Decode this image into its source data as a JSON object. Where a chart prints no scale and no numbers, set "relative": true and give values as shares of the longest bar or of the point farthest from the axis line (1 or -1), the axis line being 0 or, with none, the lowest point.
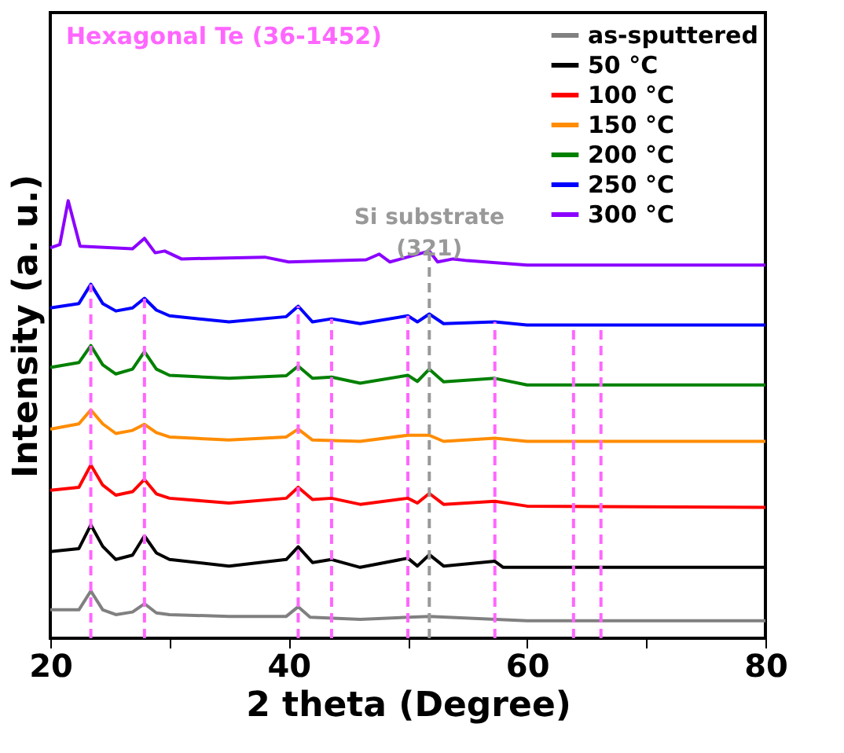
{
  "chart_data": {
    "type": "line",
    "relative": true,
    "xlabel": "2 theta (Degree)",
    "ylabel": "Intensity (a. u.)",
    "xlim": [
      20,
      80
    ],
    "xticks": [
      20,
      {
        "value": 30,
        "label": null
      },
      40,
      {
        "value": 50,
        "label": null
      },
      60,
      {
        "value": 70,
        "label": null
      },
      80
    ],
    "grid": false,
    "legend": "top right",
    "marker": "none",
    "line_style": "solid",
    "annotations": [
      "Hexagonal Te (36-1452)"
    ],
    "ref_lines": [
      {
        "axis": "x",
        "value": 23.4,
        "color": "#ff66ff",
        "line_style": "dashed"
      },
      {
        "axis": "x",
        "value": 27.9,
        "color": "#ff66ff",
        "line_style": "dashed"
      },
      {
        "axis": "x",
        "value": 40.8,
        "color": "#ff66ff",
        "line_style": "dashed"
      },
      {
        "axis": "x",
        "value": 43.6,
        "color": "#ff66ff",
        "line_style": "dashed"
      },
      {
        "axis": "x",
        "value": 50.0,
        "color": "#ff66ff",
        "line_style": "dashed"
      },
      {
        "axis": "x",
        "value": 57.3,
        "color": "#ff66ff",
        "line_style": "dashed"
      },
      {
        "axis": "x",
        "value": 63.9,
        "color": "#ff66ff",
        "line_style": "dashed"
      },
      {
        "axis": "x",
        "value": 66.2,
        "color": "#ff66ff",
        "line_style": "dashed"
      },
      {
        "axis": "x",
        "value": 51.8,
        "color": "#999999",
        "line_style": "dashed",
        "label": "Si substrate\n(321)"
      }
    ],
    "series": [
      {
        "name": "as-sputtered",
        "color": "#808080",
        "x": [
          20,
          22.4,
          23.4,
          24.4,
          25.5,
          26.9,
          27.9,
          28.9,
          30,
          35,
          39.8,
          40.8,
          41.8,
          46,
          51.8,
          60,
          80
        ],
        "values": [
          0.065,
          0.065,
          0.108,
          0.065,
          0.054,
          0.06,
          0.079,
          0.058,
          0.054,
          0.05,
          0.05,
          0.072,
          0.048,
          0.043,
          0.05,
          0.04,
          0.04
        ]
      },
      {
        "name": "50 °C",
        "color": "#000000",
        "x": [
          20,
          22.4,
          23.4,
          24.4,
          25.5,
          26.9,
          27.9,
          28.9,
          30,
          35,
          39.8,
          40.8,
          42,
          43.6,
          46,
          50,
          50.8,
          51.8,
          53,
          57.3,
          58,
          80
        ],
        "values": [
          0.198,
          0.205,
          0.259,
          0.21,
          0.18,
          0.19,
          0.234,
          0.195,
          0.18,
          0.165,
          0.18,
          0.209,
          0.173,
          0.18,
          0.162,
          0.183,
          0.165,
          0.191,
          0.165,
          0.176,
          0.162,
          0.162
        ]
      },
      {
        "name": "100 °C",
        "color": "#ff0000",
        "x": [
          20,
          22.4,
          23.4,
          24.4,
          25.5,
          26.9,
          27.9,
          28.9,
          30,
          35,
          39.8,
          40.8,
          42,
          43.6,
          46,
          50,
          50.8,
          51.8,
          53,
          57.3,
          60,
          80
        ],
        "values": [
          0.338,
          0.345,
          0.396,
          0.35,
          0.327,
          0.335,
          0.363,
          0.33,
          0.32,
          0.309,
          0.32,
          0.345,
          0.317,
          0.32,
          0.306,
          0.32,
          0.309,
          0.331,
          0.306,
          0.313,
          0.302,
          0.299
        ]
      },
      {
        "name": "150 °C",
        "color": "#ff8c00",
        "x": [
          20,
          22.4,
          23.4,
          24.4,
          25.5,
          26.9,
          27.9,
          28.9,
          30,
          35,
          39.8,
          40.8,
          42,
          46,
          50,
          51.8,
          53,
          57.3,
          60,
          80
        ],
        "values": [
          0.478,
          0.49,
          0.522,
          0.49,
          0.468,
          0.475,
          0.489,
          0.47,
          0.46,
          0.453,
          0.46,
          0.478,
          0.453,
          0.45,
          0.464,
          0.464,
          0.45,
          0.457,
          0.45,
          0.45
        ]
      },
      {
        "name": "200 °C",
        "color": "#008000",
        "x": [
          20,
          22.4,
          23.4,
          24.4,
          25.5,
          26.9,
          27.9,
          28.9,
          30,
          35,
          39.8,
          40.8,
          42,
          43.6,
          46,
          50,
          50.8,
          51.8,
          53,
          57.3,
          60,
          80
        ],
        "values": [
          0.619,
          0.63,
          0.669,
          0.625,
          0.604,
          0.615,
          0.655,
          0.615,
          0.601,
          0.594,
          0.6,
          0.622,
          0.594,
          0.597,
          0.583,
          0.601,
          0.587,
          0.615,
          0.586,
          0.594,
          0.579,
          0.579
        ]
      },
      {
        "name": "250 °C",
        "color": "#0000ff",
        "x": [
          20,
          22.4,
          23.4,
          24.4,
          25.5,
          26.9,
          27.9,
          28.9,
          30,
          35,
          39.8,
          40.8,
          42,
          43.6,
          46,
          50,
          50.8,
          51.8,
          53,
          57.3,
          60,
          80
        ],
        "values": [
          0.755,
          0.765,
          0.809,
          0.765,
          0.748,
          0.755,
          0.777,
          0.75,
          0.737,
          0.723,
          0.735,
          0.759,
          0.723,
          0.73,
          0.719,
          0.737,
          0.723,
          0.741,
          0.719,
          0.723,
          0.716,
          0.716
        ]
      },
      {
        "name": "300 °C",
        "color": "#8b00ff",
        "x": [
          20,
          20.8,
          21.5,
          22.5,
          26.9,
          27.9,
          28.8,
          29.6,
          31,
          38,
          40,
          46.5,
          47.6,
          48.5,
          51.8,
          52.5,
          53.8,
          55,
          60,
          80
        ],
        "values": [
          0.892,
          0.9,
          1,
          0.896,
          0.89,
          0.914,
          0.881,
          0.885,
          0.867,
          0.871,
          0.86,
          0.865,
          0.878,
          0.86,
          0.885,
          0.86,
          0.867,
          0.863,
          0.853,
          0.853
        ]
      }
    ]
  }
}
